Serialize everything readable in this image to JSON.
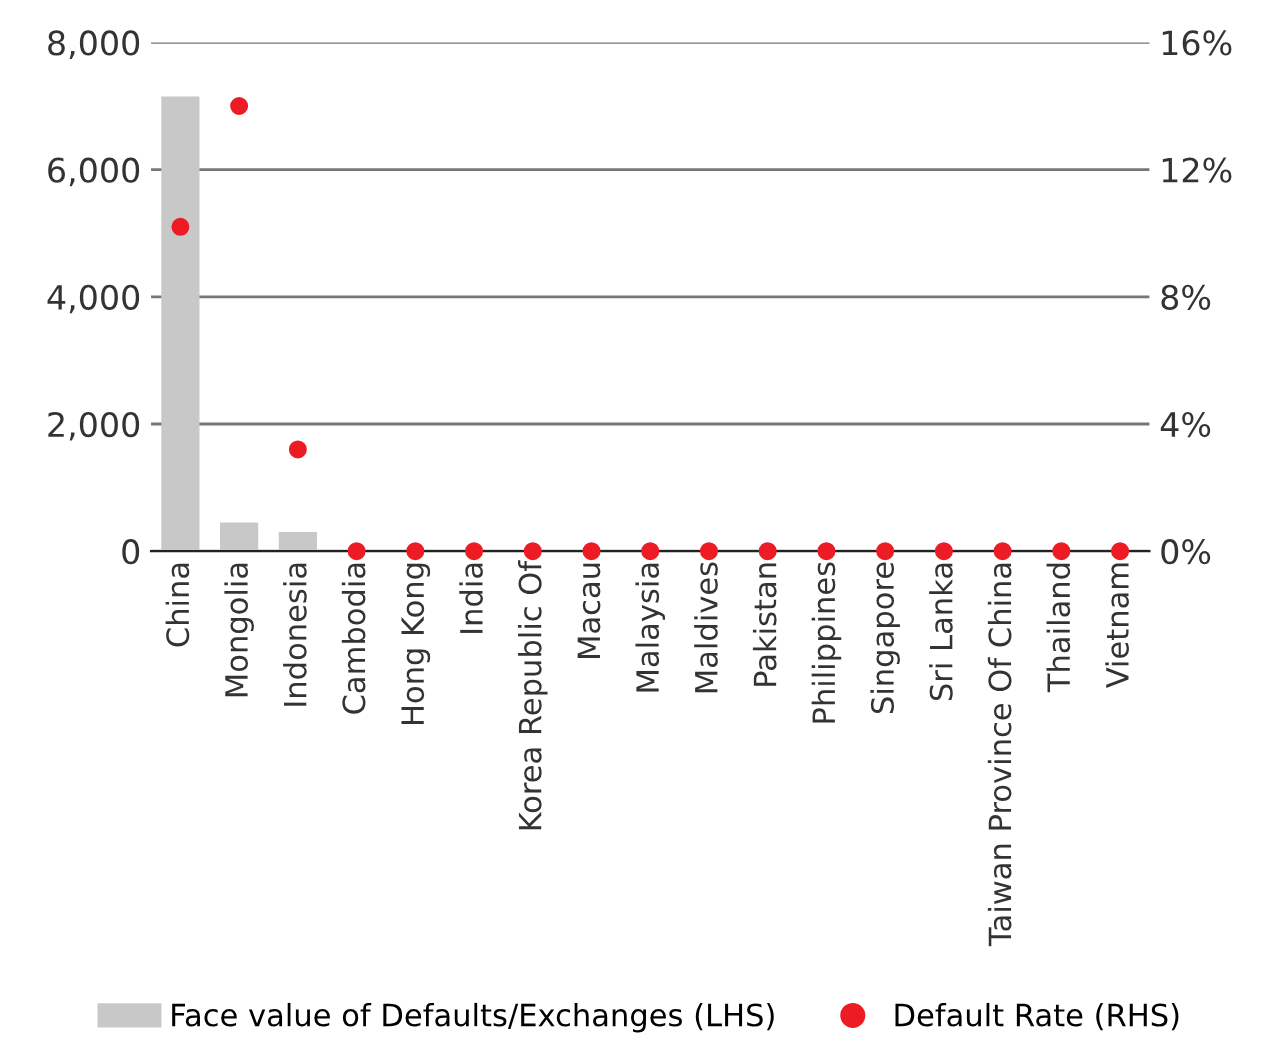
{
  "chart_data": {
    "type": "bar",
    "categories": [
      "China",
      "Mongolia",
      "Indonesia",
      "Cambodia",
      "Hong Kong",
      "India",
      "Korea Republic Of",
      "Macau",
      "Malaysia",
      "Maldives",
      "Pakistan",
      "Philippines",
      "Singapore",
      "Sri Lanka",
      "Taiwan Province Of China",
      "Thailand",
      "Vietnam"
    ],
    "series": [
      {
        "name": "Face value of Defaults/Exchanges (LHS)",
        "color": "#c8c8c8",
        "values": [
          7150,
          450,
          300,
          0,
          0,
          0,
          0,
          0,
          0,
          0,
          0,
          0,
          0,
          0,
          0,
          0,
          0
        ]
      },
      {
        "name": "Default Rate (RHS)",
        "color": "#ed1c24",
        "type": "scatter",
        "axis": "y2",
        "values": [
          10.2,
          14.0,
          3.2,
          0,
          0,
          0,
          0,
          0,
          0,
          0,
          0,
          0,
          0,
          0,
          0,
          0,
          0
        ]
      }
    ],
    "ylim": [
      0,
      8000
    ],
    "yticks": [
      {
        "value": 0,
        "label": "0"
      },
      {
        "value": 2000,
        "label": "2,000"
      },
      {
        "value": 4000,
        "label": "4,000"
      },
      {
        "value": 6000,
        "label": "6,000"
      },
      {
        "value": 8000,
        "label": "8,000"
      }
    ],
    "y2lim": [
      0,
      16
    ],
    "y2ticks": [
      {
        "value": 0,
        "label": "0%"
      },
      {
        "value": 4,
        "label": "4%"
      },
      {
        "value": 8,
        "label": "8%"
      },
      {
        "value": 12,
        "label": "12%"
      },
      {
        "value": 16,
        "label": "16%"
      }
    ],
    "grid": "y",
    "legend": "bottom",
    "marker": "circle"
  }
}
